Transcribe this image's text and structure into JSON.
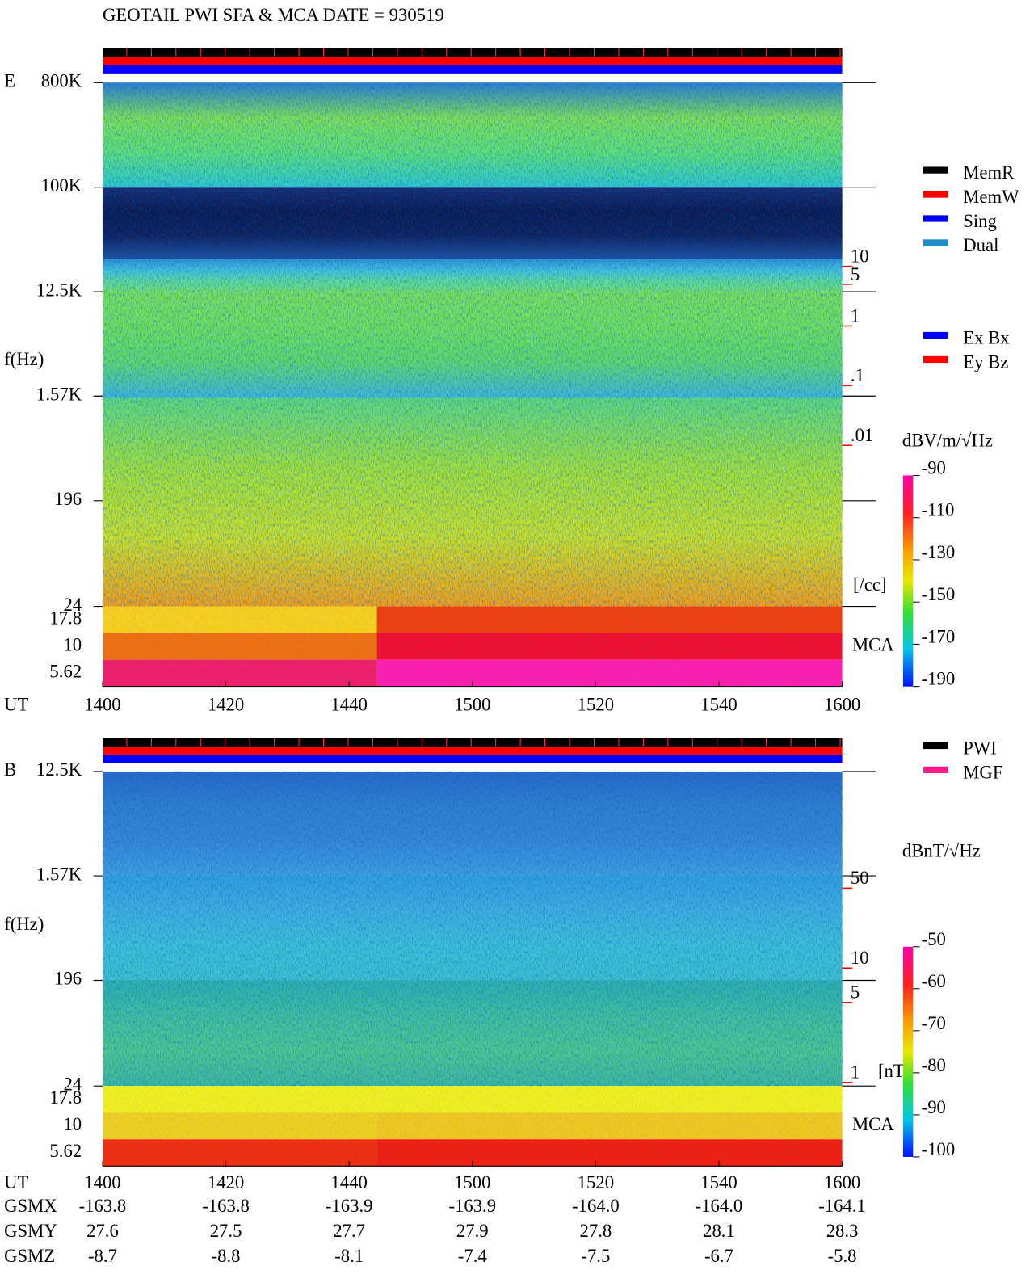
{
  "header": {
    "title": "GEOTAIL  PWI SFA & MCA   DATE = 930519"
  },
  "chart_data": [
    {
      "type": "spectrogram",
      "panel_label": "E",
      "y_label": "f(Hz)",
      "x_label": "UT",
      "categories": [
        "1400",
        "1420",
        "1440",
        "1500",
        "1520",
        "1540",
        "1600"
      ],
      "ylim": [
        24,
        800000
      ],
      "log_y": true,
      "yticks": [
        {
          "value": 800000,
          "label": "800K"
        },
        {
          "value": 100000,
          "label": "100K"
        },
        {
          "value": 12500,
          "label": "12.5K"
        },
        {
          "value": 1570,
          "label": "1.57K"
        },
        196,
        24
      ],
      "mca_label": "MCA",
      "mca_channels": [
        17.8,
        10,
        5.62
      ],
      "y2lim": [
        2e-05,
        12000
      ],
      "y2ticks": [
        10,
        5,
        1,
        {
          "value": 0.1,
          "label": ".1"
        },
        {
          "value": 0.01,
          "label": ".01"
        }
      ],
      "y2_label": "[/cc]",
      "y2_color": "#ff0000",
      "colorbar": {
        "label": "dBV/m/√Hz",
        "lim": [
          -190,
          -90
        ],
        "ticks": [
          -90,
          -110,
          -130,
          -150,
          -170,
          -190
        ]
      },
      "legend": [
        {
          "name": "MemR",
          "color": "#000000"
        },
        {
          "name": "MemW",
          "color": "#ff0000"
        },
        {
          "name": "Sing",
          "color": "#0000ff"
        },
        {
          "name": "Dual",
          "color": "#1e8cc8"
        }
      ],
      "legend2": [
        {
          "name": "Ex Bx",
          "color": "#0000ff"
        },
        {
          "name": "Ey Bz",
          "color": "#ff0000"
        }
      ]
    },
    {
      "type": "spectrogram",
      "panel_label": "B",
      "y_label": "f(Hz)",
      "x_label": "UT",
      "categories": [
        "1400",
        "1420",
        "1440",
        "1500",
        "1520",
        "1540",
        "1600"
      ],
      "ylim": [
        24,
        12500
      ],
      "log_y": true,
      "yticks": [
        {
          "value": 12500,
          "label": "12.5K"
        },
        {
          "value": 1570,
          "label": "1.57K"
        },
        196,
        24
      ],
      "mca_label": "MCA",
      "mca_channels": [
        17.8,
        10,
        5.62
      ],
      "y2lim": [
        0.93,
        524
      ],
      "y2ticks": [
        50,
        10,
        5,
        1
      ],
      "y2_label": "[nT]",
      "y2_color": "#ff0000",
      "colorbar": {
        "label": "dBnT/√Hz",
        "lim": [
          -100,
          -50
        ],
        "ticks": [
          -50,
          -60,
          -70,
          -80,
          -90,
          -100
        ]
      },
      "legend": [
        {
          "name": "PWI",
          "color": "#000000"
        },
        {
          "name": "MGF",
          "color": "#ff1a8c"
        }
      ]
    }
  ],
  "orbit": {
    "labels": [
      "GSMX",
      "GSMY",
      "GSMZ"
    ],
    "rows": [
      [
        "-163.8",
        "-163.8",
        "-163.9",
        "-163.9",
        "-164.0",
        "-164.0",
        "-164.1"
      ],
      [
        "27.6",
        "27.5",
        "27.7",
        "27.9",
        "27.8",
        "28.1",
        "28.3"
      ],
      [
        "-8.7",
        "-8.8",
        "-8.1",
        "-7.4",
        "-7.5",
        "-6.7",
        "-5.8"
      ]
    ]
  }
}
